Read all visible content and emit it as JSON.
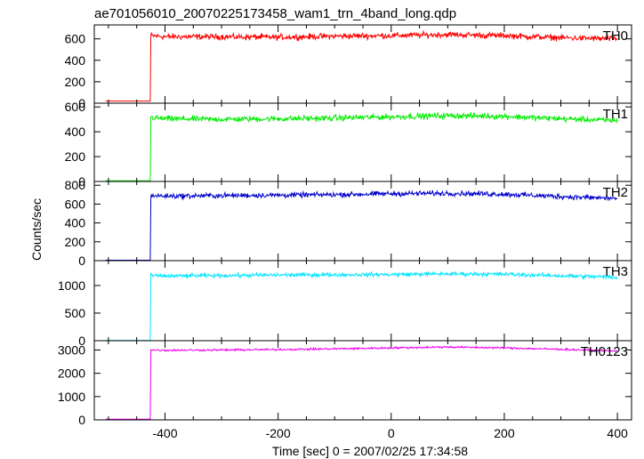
{
  "chart_data": {
    "type": "line",
    "title": "ae701056010_20070225173458_wam1_trn_4band_long.qdp",
    "xlabel": "Time [sec] 0 = 2007/02/25 17:34:58",
    "ylabel": "Counts/sec",
    "xlim": [
      -525,
      425
    ],
    "x_ticks": [
      -400,
      -200,
      0,
      200,
      400
    ],
    "grid": false,
    "legend": "none",
    "trigger_time": -425,
    "x_range": [
      -505,
      400
    ],
    "panels": [
      {
        "label": "TH0",
        "color": "#ff0000",
        "ylim": [
          0,
          730
        ],
        "y_ticks": [
          0,
          200,
          400,
          600
        ],
        "y_tick_labels": [
          "0",
          "200",
          "400",
          "600"
        ],
        "x": [
          -505,
          -430,
          -426,
          -425,
          -400,
          -300,
          -200,
          -100,
          0,
          100,
          200,
          300,
          400
        ],
        "y": [
          20,
          20,
          20,
          630,
          620,
          620,
          615,
          625,
          630,
          640,
          630,
          610,
          600
        ],
        "noise": 30
      },
      {
        "label": "TH1",
        "color": "#00ee00",
        "ylim": [
          0,
          630
        ],
        "y_ticks": [
          0,
          200,
          400,
          600
        ],
        "y_tick_labels": [
          "0",
          "200",
          "400",
          "600"
        ],
        "x": [
          -505,
          -430,
          -426,
          -425,
          -400,
          -300,
          -200,
          -100,
          0,
          100,
          200,
          300,
          400
        ],
        "y": [
          5,
          5,
          5,
          515,
          505,
          500,
          505,
          510,
          520,
          530,
          525,
          505,
          490
        ],
        "noise": 26
      },
      {
        "label": "TH2",
        "color": "#0000cc",
        "ylim": [
          0,
          840
        ],
        "y_ticks": [
          0,
          200,
          400,
          600,
          800
        ],
        "y_tick_labels": [
          "0",
          "200",
          "400",
          "600",
          "800"
        ],
        "x": [
          -505,
          -430,
          -426,
          -425,
          -400,
          -300,
          -200,
          -100,
          0,
          100,
          200,
          300,
          400
        ],
        "y": [
          5,
          5,
          5,
          690,
          685,
          690,
          695,
          700,
          710,
          715,
          705,
          680,
          660
        ],
        "noise": 30
      },
      {
        "label": "TH3",
        "color": "#00e5ff",
        "ylim": [
          0,
          1450
        ],
        "y_ticks": [
          0,
          500,
          1000
        ],
        "y_tick_labels": [
          "0",
          "500",
          "1000"
        ],
        "x": [
          -505,
          -430,
          -426,
          -425,
          -400,
          -300,
          -200,
          -100,
          0,
          100,
          200,
          300,
          400
        ],
        "y": [
          5,
          5,
          5,
          1180,
          1170,
          1180,
          1190,
          1195,
          1200,
          1210,
          1205,
          1175,
          1150
        ],
        "noise": 40
      },
      {
        "label": "TH0123",
        "color": "#ee00ee",
        "ylim": [
          0,
          3400
        ],
        "y_ticks": [
          0,
          1000,
          2000,
          3000
        ],
        "y_tick_labels": [
          "0",
          "1000",
          "2000",
          "3000"
        ],
        "x": [
          -505,
          -430,
          -426,
          -425,
          -400,
          -300,
          -200,
          -100,
          0,
          100,
          200,
          300,
          400
        ],
        "y": [
          30,
          30,
          30,
          3000,
          2990,
          3000,
          3020,
          3050,
          3090,
          3130,
          3090,
          3030,
          2950
        ],
        "noise": 45
      }
    ]
  }
}
